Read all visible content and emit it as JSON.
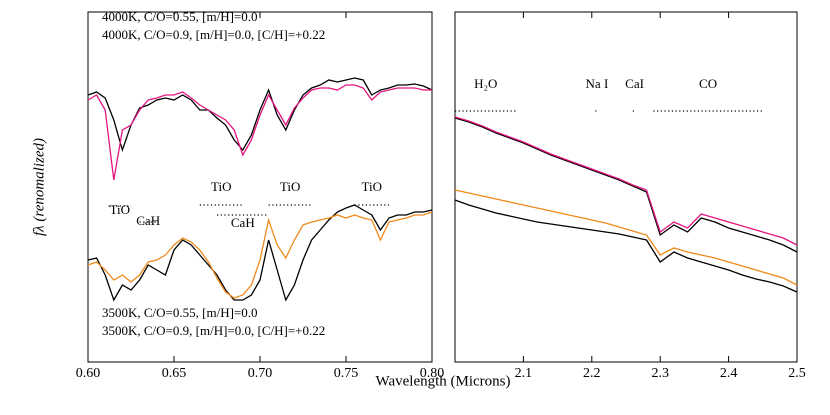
{
  "xlabel": "Wavelength (Microns)",
  "ylabel": "fλ (renomalized)",
  "chart_data": [
    {
      "type": "line",
      "xlim": [
        0.6,
        0.8
      ],
      "ylim": [
        0,
        350
      ],
      "xticks": [
        {
          "value": 0.6,
          "label": "0.60"
        },
        0.65,
        {
          "value": 0.7,
          "label": "0.70"
        },
        0.75,
        {
          "value": 0.8,
          "label": "0.80"
        }
      ],
      "x": [
        0.6,
        0.605,
        0.61,
        0.615,
        0.62,
        0.625,
        0.63,
        0.635,
        0.64,
        0.645,
        0.65,
        0.655,
        0.66,
        0.665,
        0.67,
        0.675,
        0.68,
        0.685,
        0.69,
        0.695,
        0.7,
        0.705,
        0.71,
        0.715,
        0.72,
        0.725,
        0.73,
        0.735,
        0.74,
        0.745,
        0.75,
        0.755,
        0.76,
        0.765,
        0.77,
        0.775,
        0.78,
        0.785,
        0.79,
        0.795,
        0.8
      ],
      "series": [
        {
          "name": "4000K, C/O=0.55, [m/H]=0.0",
          "color": "#000000",
          "values": [
            267,
            270,
            264,
            242,
            212,
            237,
            254,
            257,
            262,
            264,
            262,
            267,
            262,
            252,
            252,
            244,
            237,
            222,
            212,
            227,
            252,
            272,
            247,
            232,
            252,
            267,
            274,
            277,
            282,
            280,
            282,
            284,
            282,
            267,
            272,
            274,
            277,
            277,
            278,
            276,
            272
          ]
        },
        {
          "name": "4000K, C/O=0.9, [m/H]=0.0, [C/H]=+0.22",
          "color": "#e4157f",
          "values": [
            262,
            267,
            252,
            182,
            232,
            237,
            252,
            262,
            264,
            267,
            267,
            270,
            264,
            257,
            252,
            247,
            242,
            232,
            207,
            222,
            247,
            267,
            252,
            237,
            254,
            264,
            272,
            274,
            274,
            272,
            277,
            277,
            274,
            262,
            270,
            272,
            274,
            274,
            274,
            272,
            272
          ]
        },
        {
          "name": "3500K, C/O=0.55, [m/H]=0.0",
          "color": "#000000",
          "values": [
            102,
            104,
            87,
            62,
            77,
            72,
            82,
            97,
            92,
            87,
            112,
            122,
            117,
            107,
            97,
            87,
            72,
            62,
            62,
            67,
            82,
            122,
            92,
            62,
            77,
            102,
            122,
            132,
            142,
            150,
            154,
            157,
            152,
            147,
            132,
            144,
            147,
            147,
            150,
            150,
            152
          ]
        },
        {
          "name": "3500K, C/O=0.9, [m/H]=0.0, [C/H]=+0.22",
          "color": "#f08a1c",
          "values": [
            97,
            100,
            92,
            82,
            87,
            80,
            87,
            100,
            102,
            107,
            117,
            124,
            120,
            112,
            100,
            84,
            70,
            64,
            67,
            77,
            102,
            142,
            117,
            104,
            122,
            137,
            140,
            142,
            144,
            147,
            144,
            147,
            144,
            142,
            122,
            140,
            142,
            144,
            147,
            147,
            150
          ]
        }
      ],
      "annotations": [
        {
          "text": "TiO",
          "xrange": [
            0.612,
            0.625
          ],
          "y": 156,
          "text_y": 151
        },
        {
          "text": "CaH",
          "xrange": [
            0.63,
            0.64
          ],
          "y": 140,
          "text_y": 140
        },
        {
          "text": "TiO",
          "xrange": [
            0.665,
            0.69
          ],
          "y": 157,
          "text_y": 174
        },
        {
          "text": "CaH",
          "xrange": [
            0.675,
            0.705
          ],
          "y": 147,
          "text_y": 138
        },
        {
          "text": "TiO",
          "xrange": [
            0.705,
            0.73
          ],
          "y": 157,
          "text_y": 174
        },
        {
          "text": "TiO",
          "xrange": [
            0.755,
            0.775
          ],
          "y": 157,
          "text_y": 174
        }
      ]
    },
    {
      "type": "line",
      "xlim": [
        2.0,
        2.5
      ],
      "ylim": [
        0,
        350
      ],
      "xticks": [
        2.1,
        2.2,
        2.3,
        2.4,
        2.5
      ],
      "x": [
        2.0,
        2.02,
        2.04,
        2.06,
        2.08,
        2.1,
        2.12,
        2.14,
        2.16,
        2.18,
        2.2,
        2.22,
        2.24,
        2.26,
        2.28,
        2.3,
        2.32,
        2.34,
        2.36,
        2.38,
        2.4,
        2.42,
        2.44,
        2.46,
        2.48,
        2.5
      ],
      "series": [
        {
          "color": "#000000",
          "values": [
            244,
            240,
            235,
            229,
            224,
            219,
            213,
            207,
            202,
            197,
            192,
            187,
            182,
            176,
            170,
            127,
            137,
            130,
            144,
            140,
            134,
            130,
            126,
            122,
            117,
            110
          ]
        },
        {
          "color": "#e4157f",
          "values": [
            245,
            241,
            236,
            230,
            225,
            220,
            214,
            208,
            203,
            198,
            193,
            188,
            183,
            177,
            172,
            130,
            140,
            134,
            148,
            144,
            140,
            136,
            132,
            128,
            124,
            117
          ]
        },
        {
          "color": "#000000",
          "values": [
            162,
            157,
            153,
            149,
            146,
            143,
            140,
            138,
            136,
            134,
            132,
            130,
            128,
            125,
            122,
            100,
            110,
            104,
            100,
            96,
            92,
            87,
            83,
            80,
            76,
            70
          ]
        },
        {
          "color": "#f08a1c",
          "values": [
            172,
            169,
            166,
            163,
            160,
            157,
            154,
            151,
            148,
            145,
            142,
            139,
            135,
            131,
            127,
            107,
            114,
            110,
            107,
            104,
            100,
            96,
            92,
            88,
            84,
            77
          ]
        }
      ],
      "annotations": [
        {
          "text": "H₂O",
          "xrange": [
            2.0,
            2.09
          ],
          "y": 251,
          "text_y": 277
        },
        {
          "text": "Na I",
          "xrange": [
            2.205,
            2.21
          ],
          "y": 251,
          "text_y": 277
        },
        {
          "text": "CaI",
          "xrange": [
            2.26,
            2.265
          ],
          "y": 251,
          "text_y": 277
        },
        {
          "text": "CO",
          "xrange": [
            2.29,
            2.45
          ],
          "y": 251,
          "text_y": 277
        }
      ]
    }
  ]
}
